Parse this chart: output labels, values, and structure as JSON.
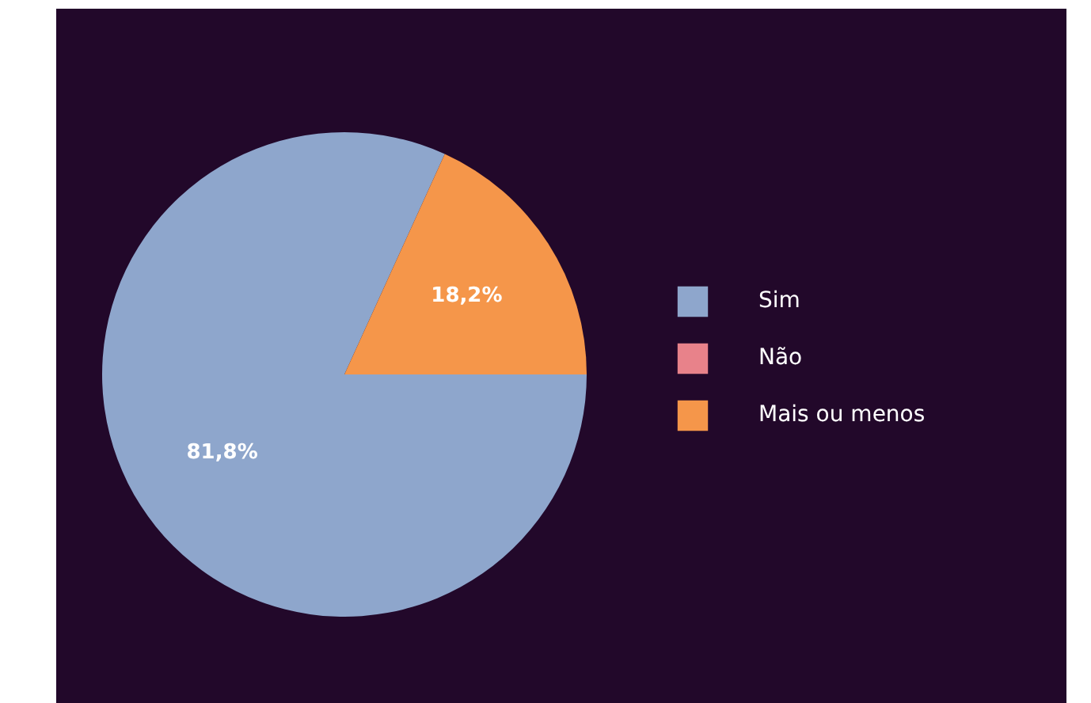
{
  "chart_data": {
    "type": "pie",
    "categories": [
      "Sim",
      "Não",
      "Mais ou menos"
    ],
    "values": [
      81.8,
      0,
      18.2
    ],
    "colors": [
      "#8ea6cc",
      "#e8828a",
      "#f5964a"
    ],
    "value_labels": [
      "81,8%",
      null,
      "18,2%"
    ],
    "legend": "right"
  }
}
